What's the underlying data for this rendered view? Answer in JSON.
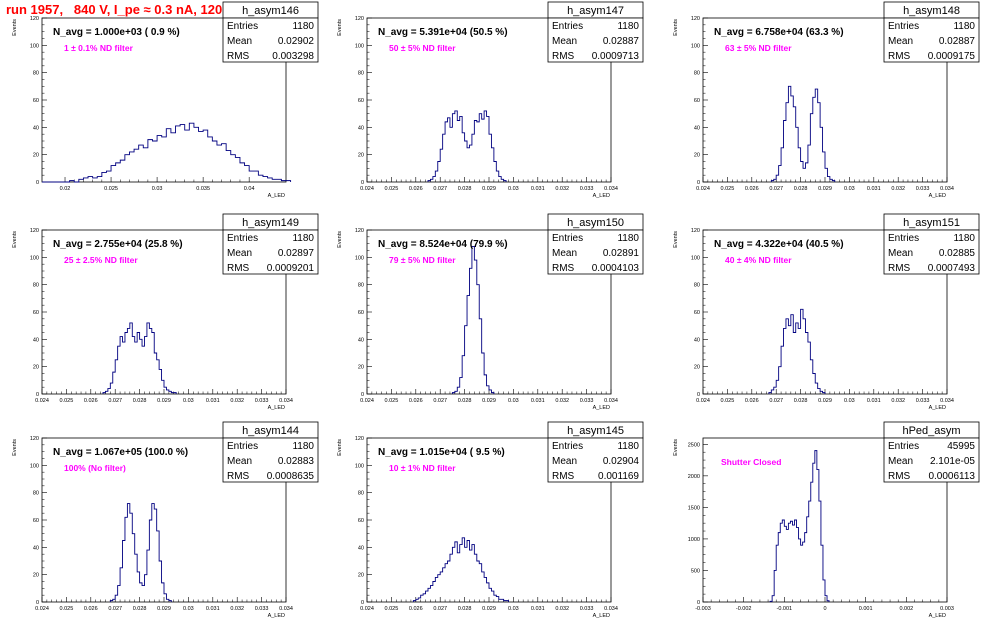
{
  "page_title": "run 1957,   840 V, I_pe ≈ 0.3 nA, 120 Hz",
  "colors": {
    "title": "#ff0000",
    "histogram": "#000080",
    "annotation": "#ff00ff",
    "axis": "#000000",
    "frame": "#000000"
  },
  "chart_data": [
    {
      "type": "bar",
      "name": "h_asym146",
      "header": "N_avg = 1.000e+03 ( 0.9 %)",
      "annotation": "1 ± 0.1% ND filter",
      "stats": [
        {
          "label": "Entries",
          "value": "1180"
        },
        {
          "label": "Mean",
          "value": "0.02902"
        },
        {
          "label": "RMS",
          "value": "0.003298"
        }
      ],
      "xlabel": "A_LED",
      "ylabel": "Events",
      "xlim": [
        0.0175,
        0.044
      ],
      "ylim": [
        0,
        120
      ],
      "xticks": [
        0.02,
        0.025,
        0.03,
        0.035,
        0.04
      ],
      "xtick_labels": [
        "0.02",
        "0.025",
        "0.03",
        "0.035",
        "0.04"
      ],
      "yticks": [
        0,
        20,
        40,
        60,
        80,
        100,
        120
      ],
      "ytick_labels": [
        "0",
        "20",
        "40",
        "60",
        "80",
        "100",
        "120"
      ],
      "bin_start": 0.0175,
      "bin_width": 0.0005,
      "values": [
        0,
        0,
        0,
        0,
        0,
        0,
        1,
        0,
        2,
        3,
        4,
        3,
        4,
        7,
        8,
        12,
        14,
        16,
        20,
        22,
        24,
        27,
        25,
        31,
        30,
        34,
        33,
        39,
        36,
        41,
        42,
        38,
        43,
        40,
        37,
        38,
        33,
        30,
        27,
        28,
        23,
        20,
        18,
        14,
        12,
        8,
        8,
        5,
        4,
        3,
        2,
        2,
        1,
        1
      ]
    },
    {
      "type": "bar",
      "name": "h_asym147",
      "header": "N_avg = 5.391e+04 (50.5 %)",
      "annotation": "50 ± 5% ND filter",
      "stats": [
        {
          "label": "Entries",
          "value": "1180"
        },
        {
          "label": "Mean",
          "value": "0.02887"
        },
        {
          "label": "RMS",
          "value": "0.0009713"
        }
      ],
      "xlabel": "A_LED",
      "ylabel": "Events",
      "xlim": [
        0.024,
        0.034
      ],
      "ylim": [
        0,
        120
      ],
      "xticks": [
        0.024,
        0.025,
        0.026,
        0.027,
        0.028,
        0.029,
        0.03,
        0.031,
        0.032,
        0.033,
        0.034
      ],
      "xtick_labels": [
        "0.024",
        "0.025",
        "0.026",
        "0.027",
        "0.028",
        "0.029",
        "0.03",
        "0.031",
        "0.032",
        "0.033",
        "0.034"
      ],
      "yticks": [
        0,
        20,
        40,
        60,
        80,
        100,
        120
      ],
      "ytick_labels": [
        "0",
        "20",
        "40",
        "60",
        "80",
        "100",
        "120"
      ],
      "bin_start": 0.0265,
      "bin_width": 0.0001,
      "values": [
        1,
        2,
        4,
        8,
        15,
        24,
        35,
        44,
        47,
        40,
        50,
        52,
        45,
        48,
        36,
        30,
        25,
        27,
        35,
        45,
        44,
        50,
        46,
        52,
        48,
        35,
        25,
        15,
        8,
        4,
        2,
        1
      ]
    },
    {
      "type": "bar",
      "name": "h_asym148",
      "header": "N_avg = 6.758e+04 (63.3 %)",
      "annotation": "63 ± 5% ND filter",
      "stats": [
        {
          "label": "Entries",
          "value": "1180"
        },
        {
          "label": "Mean",
          "value": "0.02887"
        },
        {
          "label": "RMS",
          "value": "0.0009175"
        }
      ],
      "xlabel": "A_LED",
      "ylabel": "Events",
      "xlim": [
        0.024,
        0.034
      ],
      "ylim": [
        0,
        120
      ],
      "xticks": [
        0.024,
        0.025,
        0.026,
        0.027,
        0.028,
        0.029,
        0.03,
        0.031,
        0.032,
        0.033,
        0.034
      ],
      "xtick_labels": [
        "0.024",
        "0.025",
        "0.026",
        "0.027",
        "0.028",
        "0.029",
        "0.03",
        "0.031",
        "0.032",
        "0.033",
        "0.034"
      ],
      "yticks": [
        0,
        20,
        40,
        60,
        80,
        100,
        120
      ],
      "ytick_labels": [
        "0",
        "20",
        "40",
        "60",
        "80",
        "100",
        "120"
      ],
      "bin_start": 0.0268,
      "bin_width": 0.0001,
      "values": [
        1,
        2,
        5,
        12,
        25,
        45,
        58,
        70,
        63,
        55,
        40,
        25,
        15,
        10,
        14,
        27,
        50,
        62,
        68,
        58,
        40,
        22,
        10,
        4,
        2,
        1
      ]
    },
    {
      "type": "bar",
      "name": "h_asym149",
      "header": "N_avg = 2.755e+04 (25.8 %)",
      "annotation": "25 ± 2.5% ND filter",
      "stats": [
        {
          "label": "Entries",
          "value": "1180"
        },
        {
          "label": "Mean",
          "value": "0.02897"
        },
        {
          "label": "RMS",
          "value": "0.0009201"
        }
      ],
      "xlabel": "A_LED",
      "ylabel": "Events",
      "xlim": [
        0.024,
        0.034
      ],
      "ylim": [
        0,
        120
      ],
      "xticks": [
        0.024,
        0.025,
        0.026,
        0.027,
        0.028,
        0.029,
        0.03,
        0.031,
        0.032,
        0.033,
        0.034
      ],
      "xtick_labels": [
        "0.024",
        "0.025",
        "0.026",
        "0.027",
        "0.028",
        "0.029",
        "0.03",
        "0.031",
        "0.032",
        "0.033",
        "0.034"
      ],
      "yticks": [
        0,
        20,
        40,
        60,
        80,
        100,
        120
      ],
      "ytick_labels": [
        "0",
        "20",
        "40",
        "60",
        "80",
        "100",
        "120"
      ],
      "bin_start": 0.0265,
      "bin_width": 0.0001,
      "values": [
        1,
        2,
        4,
        8,
        16,
        25,
        35,
        42,
        38,
        45,
        48,
        52,
        42,
        38,
        45,
        40,
        35,
        42,
        52,
        48,
        45,
        30,
        25,
        18,
        10,
        5,
        3,
        2,
        1,
        1
      ]
    },
    {
      "type": "bar",
      "name": "h_asym150",
      "header": "N_avg = 8.524e+04 (79.9 %)",
      "annotation": "79 ± 5% ND filter",
      "stats": [
        {
          "label": "Entries",
          "value": "1180"
        },
        {
          "label": "Mean",
          "value": "0.02891"
        },
        {
          "label": "RMS",
          "value": "0.0004103"
        }
      ],
      "xlabel": "A_LED",
      "ylabel": "Events",
      "xlim": [
        0.024,
        0.034
      ],
      "ylim": [
        0,
        120
      ],
      "xticks": [
        0.024,
        0.025,
        0.026,
        0.027,
        0.028,
        0.029,
        0.03,
        0.031,
        0.032,
        0.033,
        0.034
      ],
      "xtick_labels": [
        "0.024",
        "0.025",
        "0.026",
        "0.027",
        "0.028",
        "0.029",
        "0.03",
        "0.031",
        "0.032",
        "0.033",
        "0.034"
      ],
      "yticks": [
        0,
        20,
        40,
        60,
        80,
        100,
        120
      ],
      "ytick_labels": [
        "0",
        "20",
        "40",
        "60",
        "80",
        "100",
        "120"
      ],
      "bin_start": 0.0275,
      "bin_width": 0.0001,
      "values": [
        1,
        2,
        5,
        12,
        28,
        50,
        72,
        92,
        108,
        98,
        80,
        55,
        30,
        14,
        6,
        3,
        1
      ]
    },
    {
      "type": "bar",
      "name": "h_asym151",
      "header": "N_avg = 4.322e+04 (40.5 %)",
      "annotation": "40 ± 4% ND filter",
      "stats": [
        {
          "label": "Entries",
          "value": "1180"
        },
        {
          "label": "Mean",
          "value": "0.02885"
        },
        {
          "label": "RMS",
          "value": "0.0007493"
        }
      ],
      "xlabel": "A_LED",
      "ylabel": "Events",
      "xlim": [
        0.024,
        0.034
      ],
      "ylim": [
        0,
        120
      ],
      "xticks": [
        0.024,
        0.025,
        0.026,
        0.027,
        0.028,
        0.029,
        0.03,
        0.031,
        0.032,
        0.033,
        0.034
      ],
      "xtick_labels": [
        "0.024",
        "0.025",
        "0.026",
        "0.027",
        "0.028",
        "0.029",
        "0.03",
        "0.031",
        "0.032",
        "0.033",
        "0.034"
      ],
      "yticks": [
        0,
        20,
        40,
        60,
        80,
        100,
        120
      ],
      "ytick_labels": [
        "0",
        "20",
        "40",
        "60",
        "80",
        "100",
        "120"
      ],
      "bin_start": 0.0267,
      "bin_width": 0.0001,
      "values": [
        1,
        3,
        5,
        10,
        20,
        35,
        48,
        55,
        50,
        58,
        45,
        52,
        48,
        62,
        55,
        45,
        38,
        25,
        15,
        8,
        4,
        2,
        1
      ]
    },
    {
      "type": "bar",
      "name": "h_asym144",
      "header": "N_avg = 1.067e+05 (100.0 %)",
      "annotation": "100% (No filter)",
      "stats": [
        {
          "label": "Entries",
          "value": "1180"
        },
        {
          "label": "Mean",
          "value": "0.02883"
        },
        {
          "label": "RMS",
          "value": "0.0008635"
        }
      ],
      "xlabel": "A_LED",
      "ylabel": "Events",
      "xlim": [
        0.024,
        0.034
      ],
      "ylim": [
        0,
        120
      ],
      "xticks": [
        0.024,
        0.025,
        0.026,
        0.027,
        0.028,
        0.029,
        0.03,
        0.031,
        0.032,
        0.033,
        0.034
      ],
      "xtick_labels": [
        "0.024",
        "0.025",
        "0.026",
        "0.027",
        "0.028",
        "0.029",
        "0.03",
        "0.031",
        "0.032",
        "0.033",
        "0.034"
      ],
      "yticks": [
        0,
        20,
        40,
        60,
        80,
        100,
        120
      ],
      "ytick_labels": [
        "0",
        "20",
        "40",
        "60",
        "80",
        "100",
        "120"
      ],
      "bin_start": 0.0268,
      "bin_width": 0.0001,
      "values": [
        1,
        2,
        5,
        12,
        25,
        45,
        62,
        72,
        65,
        50,
        35,
        22,
        14,
        12,
        20,
        38,
        60,
        72,
        68,
        52,
        30,
        14,
        6,
        2,
        1
      ]
    },
    {
      "type": "bar",
      "name": "h_asym145",
      "header": "N_avg = 1.015e+04 ( 9.5 %)",
      "annotation": "10 ± 1% ND filter",
      "stats": [
        {
          "label": "Entries",
          "value": "1180"
        },
        {
          "label": "Mean",
          "value": "0.02904"
        },
        {
          "label": "RMS",
          "value": "0.001169"
        }
      ],
      "xlabel": "A_LED",
      "ylabel": "Events",
      "xlim": [
        0.024,
        0.034
      ],
      "ylim": [
        0,
        120
      ],
      "xticks": [
        0.024,
        0.025,
        0.026,
        0.027,
        0.028,
        0.029,
        0.03,
        0.031,
        0.032,
        0.033,
        0.034
      ],
      "xtick_labels": [
        "0.024",
        "0.025",
        "0.026",
        "0.027",
        "0.028",
        "0.029",
        "0.03",
        "0.031",
        "0.032",
        "0.033",
        "0.034"
      ],
      "yticks": [
        0,
        20,
        40,
        60,
        80,
        100,
        120
      ],
      "ytick_labels": [
        "0",
        "20",
        "40",
        "60",
        "80",
        "100",
        "120"
      ],
      "bin_start": 0.0259,
      "bin_width": 0.0001,
      "values": [
        1,
        2,
        3,
        5,
        6,
        8,
        10,
        12,
        15,
        18,
        20,
        22,
        25,
        28,
        30,
        35,
        40,
        44,
        36,
        42,
        47,
        40,
        45,
        38,
        42,
        35,
        30,
        28,
        22,
        18,
        14,
        10,
        8,
        5,
        4,
        2,
        2,
        1,
        1
      ]
    },
    {
      "type": "bar",
      "name": "hPed_asym",
      "header": "",
      "annotation": "Shutter Closed",
      "stats": [
        {
          "label": "Entries",
          "value": "45995"
        },
        {
          "label": "Mean",
          "value": "2.101e-05"
        },
        {
          "label": "RMS",
          "value": "0.0006113"
        }
      ],
      "xlabel": "A_LED",
      "ylabel": "Events",
      "xlim": [
        -0.003,
        0.003
      ],
      "ylim": [
        0,
        2600
      ],
      "xticks": [
        -0.003,
        -0.002,
        -0.001,
        0,
        0.001,
        0.002,
        0.003
      ],
      "xtick_labels": [
        "-0.003",
        "-0.002",
        "-0.001",
        "0",
        "0.001",
        "0.002",
        "0.003"
      ],
      "yticks": [
        0,
        500,
        1000,
        1500,
        2000,
        2500
      ],
      "ytick_labels": [
        "0",
        "500",
        "1000",
        "1500",
        "2000",
        "2500"
      ],
      "bin_start": -0.00135,
      "bin_width": 5e-05,
      "values": [
        10,
        100,
        500,
        900,
        1100,
        1250,
        1300,
        1200,
        1150,
        1250,
        1280,
        1220,
        1300,
        1180,
        1000,
        900,
        950,
        1100,
        1350,
        1600,
        1900,
        2200,
        2400,
        2100,
        1600,
        900,
        350,
        100,
        20
      ]
    }
  ]
}
